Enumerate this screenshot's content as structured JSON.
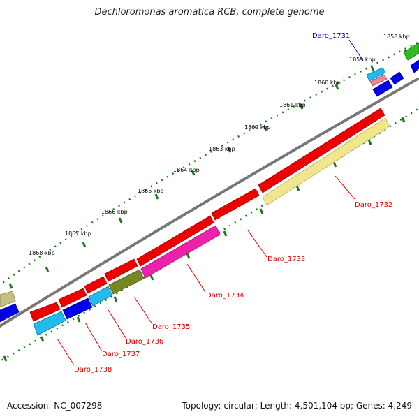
{
  "title": "Dechloromonas aromatica RCB, complete genome",
  "footer": {
    "accession": "Accession: NC_007298",
    "summary": "Topology: circular; Length: 4,501,104 bp; Genes: 4,249"
  },
  "colors": {
    "backbone": "#777777",
    "tick": "#1a7a1a",
    "label_red": "#dd0000",
    "label_blue": "#0000cc"
  },
  "kbp_ticks": [
    "1858 kbp",
    "1859 kbp",
    "1860 kbp",
    "1861 kbp",
    "1862 kbp",
    "1863 kbp",
    "1864 kbp",
    "1865 kbp",
    "1866 kbp",
    "1867 kbp",
    "1868 kbp"
  ],
  "gene_labels": [
    "Daro_1731",
    "Daro_1732",
    "Daro_1733",
    "Daro_1734",
    "Daro_1735",
    "Daro_1736",
    "Daro_1737",
    "Daro_1738"
  ]
}
